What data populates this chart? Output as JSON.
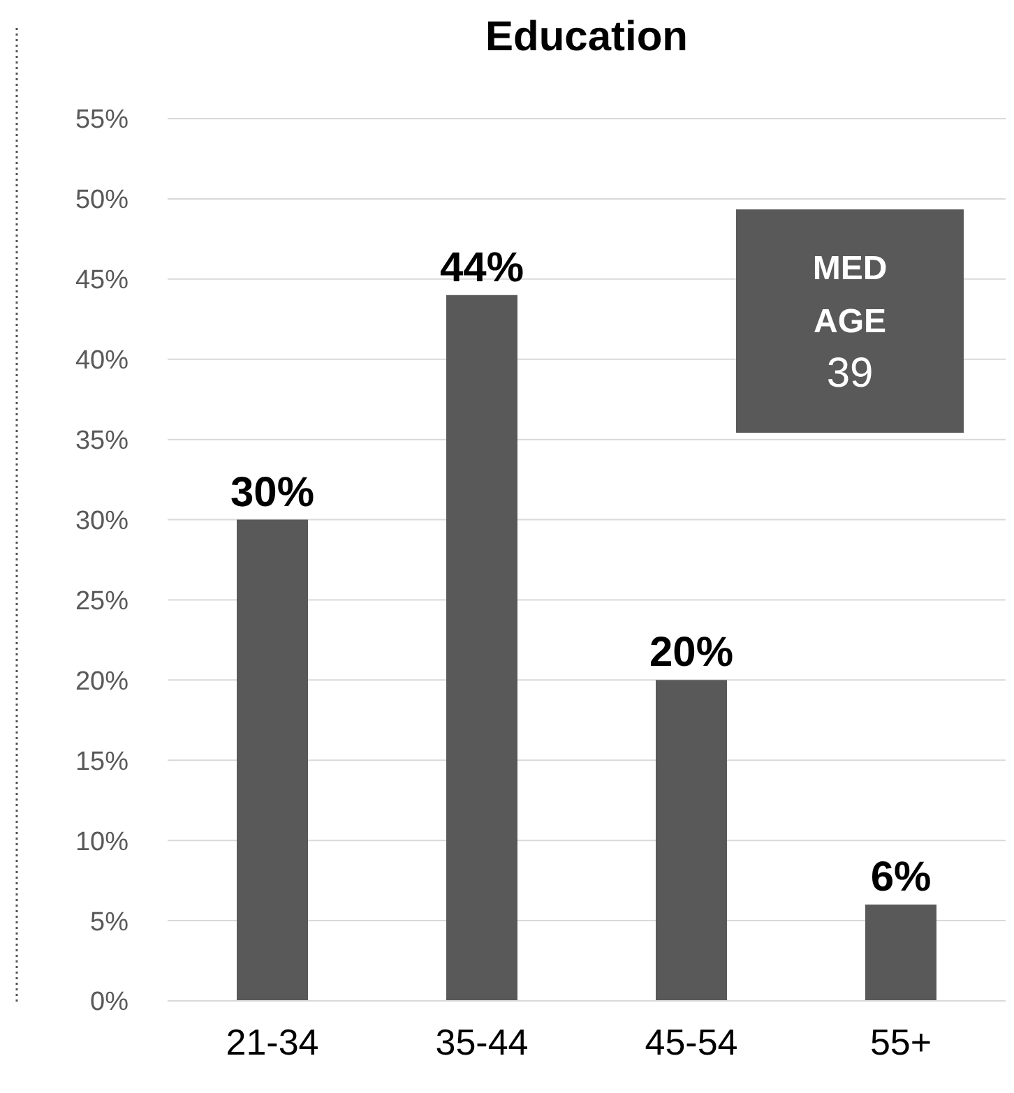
{
  "chart_data": {
    "type": "bar",
    "title": "Education",
    "categories": [
      "21-34",
      "35-44",
      "45-54",
      "55+"
    ],
    "values": [
      30,
      44,
      20,
      6
    ],
    "value_labels": [
      "30%",
      "44%",
      "20%",
      "6%"
    ],
    "color": "#595959",
    "ylim": [
      0,
      55
    ],
    "yticks": [
      {
        "value": 0,
        "label": "0%"
      },
      {
        "value": 5,
        "label": "5%"
      },
      {
        "value": 10,
        "label": "10%"
      },
      {
        "value": 15,
        "label": "15%"
      },
      {
        "value": 20,
        "label": "20%"
      },
      {
        "value": 25,
        "label": "25%"
      },
      {
        "value": 30,
        "label": "30%"
      },
      {
        "value": 35,
        "label": "35%"
      },
      {
        "value": 40,
        "label": "40%"
      },
      {
        "value": 45,
        "label": "45%"
      },
      {
        "value": 50,
        "label": "50%"
      },
      {
        "value": 55,
        "label": "55%"
      }
    ],
    "grid": "y",
    "annotations": [
      "MED AGE",
      "39"
    ]
  }
}
